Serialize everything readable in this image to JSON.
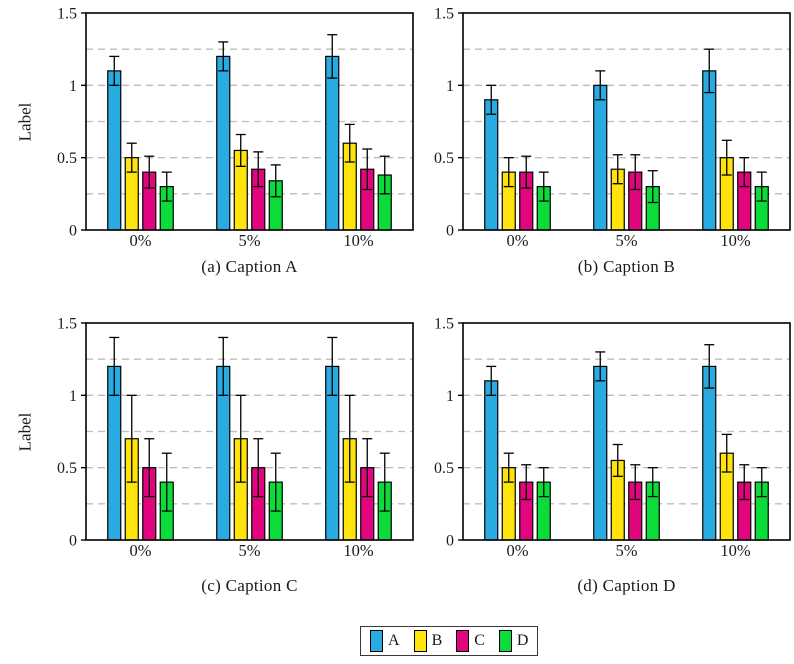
{
  "figure": {
    "background": "#ffffff",
    "grid_style": "dashed",
    "grid_color": "#bcbcbc",
    "axis_color": "#000000"
  },
  "legend": {
    "items": [
      {
        "label": "A",
        "color": "#29ABE2"
      },
      {
        "label": "B",
        "color": "#FFE30D"
      },
      {
        "label": "C",
        "color": "#E2067E"
      },
      {
        "label": "D",
        "color": "#0BDC3A"
      }
    ]
  },
  "chart_data": [
    {
      "id": "a",
      "type": "bar",
      "caption": "(a) Caption A",
      "ylabel": "Label",
      "categories": [
        "0%",
        "5%",
        "10%"
      ],
      "ylim": [
        0,
        1.5
      ],
      "ytick_values": [
        0,
        0.5,
        1,
        1.5
      ],
      "ytick_labels": [
        "0",
        "0.5",
        "1",
        "1.5"
      ],
      "gridlines": [
        0.25,
        0.5,
        0.75,
        1,
        1.25
      ],
      "series": [
        {
          "name": "A",
          "color": "#29ABE2",
          "values": [
            1.1,
            1.2,
            1.2
          ],
          "errors": [
            0.1,
            0.1,
            0.15
          ]
        },
        {
          "name": "B",
          "color": "#FFE30D",
          "values": [
            0.5,
            0.55,
            0.6
          ],
          "errors": [
            0.1,
            0.11,
            0.13
          ]
        },
        {
          "name": "C",
          "color": "#E2067E",
          "values": [
            0.4,
            0.42,
            0.42
          ],
          "errors": [
            0.11,
            0.12,
            0.14
          ]
        },
        {
          "name": "D",
          "color": "#0BDC3A",
          "values": [
            0.3,
            0.34,
            0.38
          ],
          "errors": [
            0.1,
            0.11,
            0.13
          ]
        }
      ]
    },
    {
      "id": "b",
      "type": "bar",
      "caption": "(b) Caption B",
      "ylabel": "",
      "categories": [
        "0%",
        "5%",
        "10%"
      ],
      "ylim": [
        0,
        1.5
      ],
      "ytick_values": [
        0,
        0.5,
        1,
        1.5
      ],
      "ytick_labels": [
        "0",
        "0.5",
        "1",
        "1.5"
      ],
      "gridlines": [
        0.25,
        0.5,
        0.75,
        1,
        1.25
      ],
      "series": [
        {
          "name": "A",
          "color": "#29ABE2",
          "values": [
            0.9,
            1.0,
            1.1
          ],
          "errors": [
            0.1,
            0.1,
            0.15
          ]
        },
        {
          "name": "B",
          "color": "#FFE30D",
          "values": [
            0.4,
            0.42,
            0.5
          ],
          "errors": [
            0.1,
            0.1,
            0.12
          ]
        },
        {
          "name": "C",
          "color": "#E2067E",
          "values": [
            0.4,
            0.4,
            0.4
          ],
          "errors": [
            0.11,
            0.12,
            0.1
          ]
        },
        {
          "name": "D",
          "color": "#0BDC3A",
          "values": [
            0.3,
            0.3,
            0.3
          ],
          "errors": [
            0.1,
            0.11,
            0.1
          ]
        }
      ]
    },
    {
      "id": "c",
      "type": "bar",
      "caption": "(c) Caption C",
      "ylabel": "Label",
      "categories": [
        "0%",
        "5%",
        "10%"
      ],
      "ylim": [
        0,
        1.5
      ],
      "ytick_values": [
        0,
        0.5,
        1,
        1.5
      ],
      "ytick_labels": [
        "0",
        "0.5",
        "1",
        "1.5"
      ],
      "gridlines": [
        0.25,
        0.5,
        0.75,
        1,
        1.25
      ],
      "series": [
        {
          "name": "A",
          "color": "#29ABE2",
          "values": [
            1.2,
            1.2,
            1.2
          ],
          "errors": [
            0.2,
            0.2,
            0.2
          ]
        },
        {
          "name": "B",
          "color": "#FFE30D",
          "values": [
            0.7,
            0.7,
            0.7
          ],
          "errors": [
            0.3,
            0.3,
            0.3
          ]
        },
        {
          "name": "C",
          "color": "#E2067E",
          "values": [
            0.5,
            0.5,
            0.5
          ],
          "errors": [
            0.2,
            0.2,
            0.2
          ]
        },
        {
          "name": "D",
          "color": "#0BDC3A",
          "values": [
            0.4,
            0.4,
            0.4
          ],
          "errors": [
            0.2,
            0.2,
            0.2
          ]
        }
      ]
    },
    {
      "id": "d",
      "type": "bar",
      "caption": "(d) Caption D",
      "ylabel": "",
      "categories": [
        "0%",
        "5%",
        "10%"
      ],
      "ylim": [
        0,
        1.5
      ],
      "ytick_values": [
        0,
        0.5,
        1,
        1.5
      ],
      "ytick_labels": [
        "0",
        "0.5",
        "1",
        "1.5"
      ],
      "gridlines": [
        0.25,
        0.5,
        0.75,
        1,
        1.25
      ],
      "series": [
        {
          "name": "A",
          "color": "#29ABE2",
          "values": [
            1.1,
            1.2,
            1.2
          ],
          "errors": [
            0.1,
            0.1,
            0.15
          ]
        },
        {
          "name": "B",
          "color": "#FFE30D",
          "values": [
            0.5,
            0.55,
            0.6
          ],
          "errors": [
            0.1,
            0.11,
            0.13
          ]
        },
        {
          "name": "C",
          "color": "#E2067E",
          "values": [
            0.4,
            0.4,
            0.4
          ],
          "errors": [
            0.12,
            0.12,
            0.12
          ]
        },
        {
          "name": "D",
          "color": "#0BDC3A",
          "values": [
            0.4,
            0.4,
            0.4
          ],
          "errors": [
            0.1,
            0.1,
            0.1
          ]
        }
      ]
    }
  ]
}
